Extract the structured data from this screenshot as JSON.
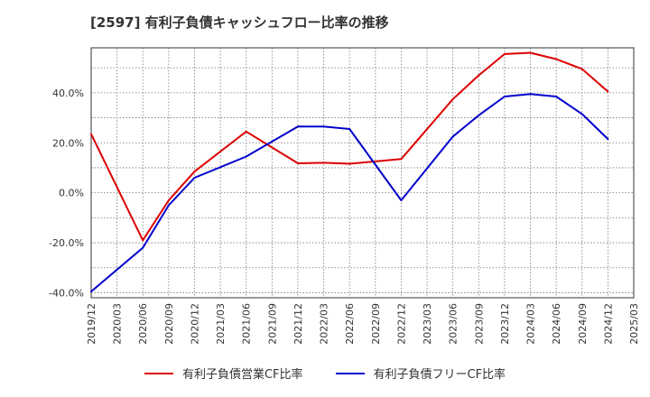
{
  "chart_data": {
    "type": "line",
    "title": "[2597]  有利子負債キャッシュフロー比率の推移",
    "xlabel": "",
    "ylabel": "",
    "x_ticks": [
      "2019/12",
      "2020/03",
      "2020/06",
      "2020/09",
      "2020/12",
      "2021/03",
      "2021/06",
      "2021/09",
      "2021/12",
      "2022/03",
      "2022/06",
      "2022/09",
      "2022/12",
      "2023/03",
      "2023/06",
      "2023/09",
      "2023/12",
      "2024/03",
      "2024/06",
      "2024/09",
      "2024/12",
      "2025/03"
    ],
    "y_ticks": [
      -40,
      -20,
      0,
      20,
      40
    ],
    "y_tick_labels": [
      "-40.0%",
      "-20.0%",
      "0.0%",
      "20.0%",
      "40.0%"
    ],
    "ylim": [
      -42,
      58
    ],
    "grid": true,
    "legend_position": "bottom",
    "series": [
      {
        "name": "有利子負債営業CF比率",
        "color": "#dd0000",
        "x": [
          "2019/12",
          "2020/06",
          "2020/09",
          "2020/12",
          "2021/06",
          "2021/12",
          "2022/03",
          "2022/06",
          "2022/12",
          "2023/06",
          "2023/09",
          "2023/12",
          "2024/03",
          "2024/06",
          "2024/09",
          "2024/12"
        ],
        "values": [
          23.5,
          -19,
          -3,
          8.5,
          24.5,
          11.8,
          12,
          11.6,
          13.5,
          37.5,
          47,
          55.5,
          56,
          53.5,
          49.5,
          40.5
        ]
      },
      {
        "name": "有利子負債フリーCF比率",
        "color": "#0000cc",
        "x": [
          "2019/12",
          "2020/06",
          "2020/09",
          "2020/12",
          "2021/06",
          "2021/12",
          "2022/03",
          "2022/06",
          "2022/12",
          "2023/06",
          "2023/09",
          "2023/12",
          "2024/03",
          "2024/06",
          "2024/09",
          "2024/12"
        ],
        "values": [
          -39.5,
          -22,
          -5,
          6,
          14.5,
          26.5,
          26.5,
          25.5,
          -3,
          22.5,
          31,
          38.5,
          39.5,
          38.5,
          31.5,
          21.5
        ]
      }
    ]
  }
}
